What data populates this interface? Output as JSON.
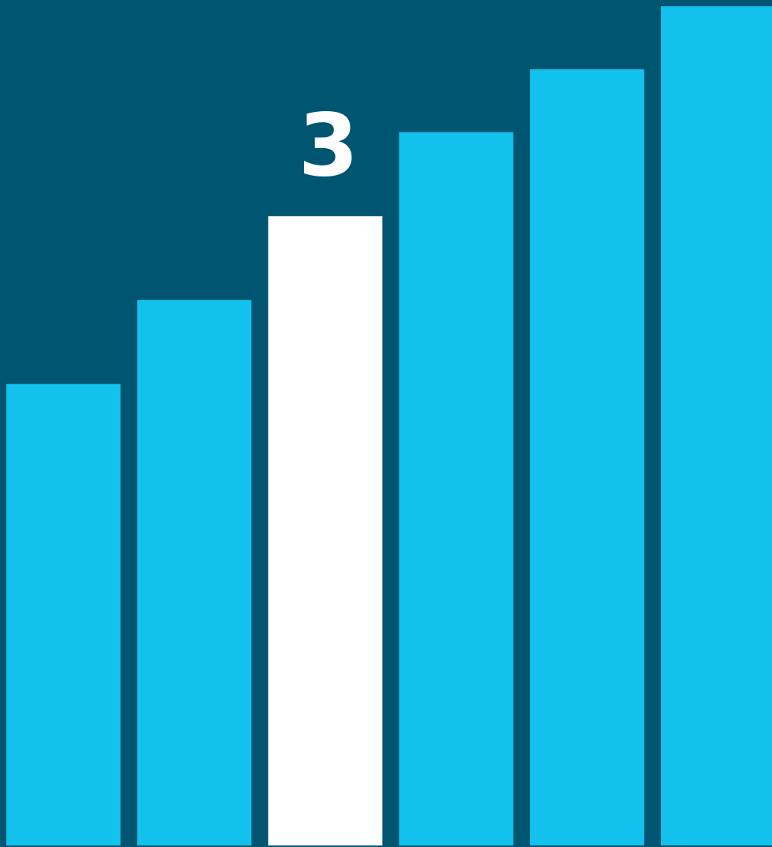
{
  "chart_data": {
    "type": "bar",
    "values": [
      5.5,
      6.5,
      7.5,
      8.5,
      9.25,
      10
    ],
    "ylim": [
      0,
      10
    ],
    "highlight_index": 2,
    "highlight_label": "3",
    "grid": false,
    "legend": "none",
    "colors": {
      "background": "#005570",
      "bar": "#12C2EC",
      "highlight_bar": "#FFFFFF",
      "label": "#FFFFFF"
    }
  }
}
